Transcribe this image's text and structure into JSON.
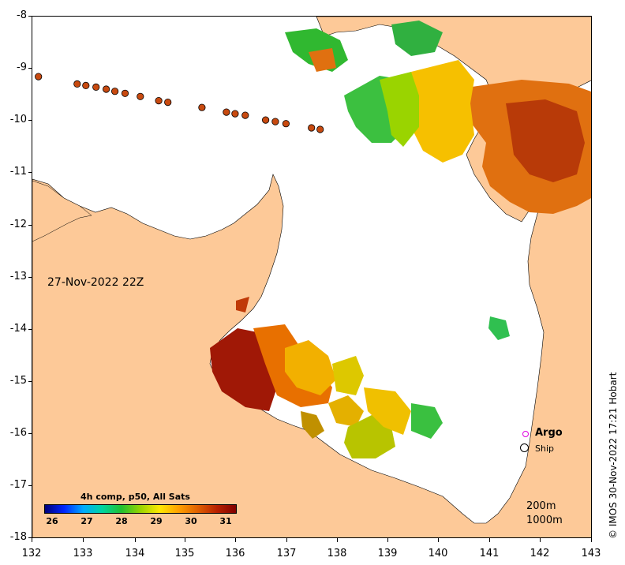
{
  "map": {
    "date_label": "27-Nov-2022 22Z",
    "lon_ticks": [
      "132",
      "133",
      "134",
      "135",
      "136",
      "137",
      "138",
      "139",
      "140",
      "141",
      "142",
      "143"
    ],
    "lat_ticks": [
      "-8",
      "-9",
      "-10",
      "-11",
      "-12",
      "-13",
      "-14",
      "-15",
      "-16",
      "-17",
      "-18"
    ],
    "land_color": "#fdc998",
    "ocean_color": "#ffffff"
  },
  "legend": {
    "argo_label": "Argo",
    "ship_label": "Ship",
    "argo_color": "#e000e0",
    "depth_200": "200m",
    "depth_1000": "1000m"
  },
  "colorbar": {
    "title": "4h comp, p50, All Sats",
    "labels": [
      "26",
      "27",
      "28",
      "29",
      "30",
      "31"
    ]
  },
  "credit": "© IMOS 30-Nov-2022 17:21 Hobart",
  "ship_track": [
    {
      "lon": 132.12,
      "lat": -9.15
    },
    {
      "lon": 132.88,
      "lat": -9.29
    },
    {
      "lon": 133.05,
      "lat": -9.32
    },
    {
      "lon": 133.25,
      "lat": -9.35
    },
    {
      "lon": 133.45,
      "lat": -9.39
    },
    {
      "lon": 133.62,
      "lat": -9.43
    },
    {
      "lon": 133.82,
      "lat": -9.47
    },
    {
      "lon": 134.12,
      "lat": -9.53
    },
    {
      "lon": 134.48,
      "lat": -9.61
    },
    {
      "lon": 134.66,
      "lat": -9.64
    },
    {
      "lon": 135.33,
      "lat": -9.74
    },
    {
      "lon": 135.81,
      "lat": -9.83
    },
    {
      "lon": 135.98,
      "lat": -9.86
    },
    {
      "lon": 136.18,
      "lat": -9.89
    },
    {
      "lon": 136.58,
      "lat": -9.98
    },
    {
      "lon": 136.77,
      "lat": -10.01
    },
    {
      "lon": 136.98,
      "lat": -10.05
    },
    {
      "lon": 137.48,
      "lat": -10.13
    },
    {
      "lon": 137.65,
      "lat": -10.16
    }
  ]
}
